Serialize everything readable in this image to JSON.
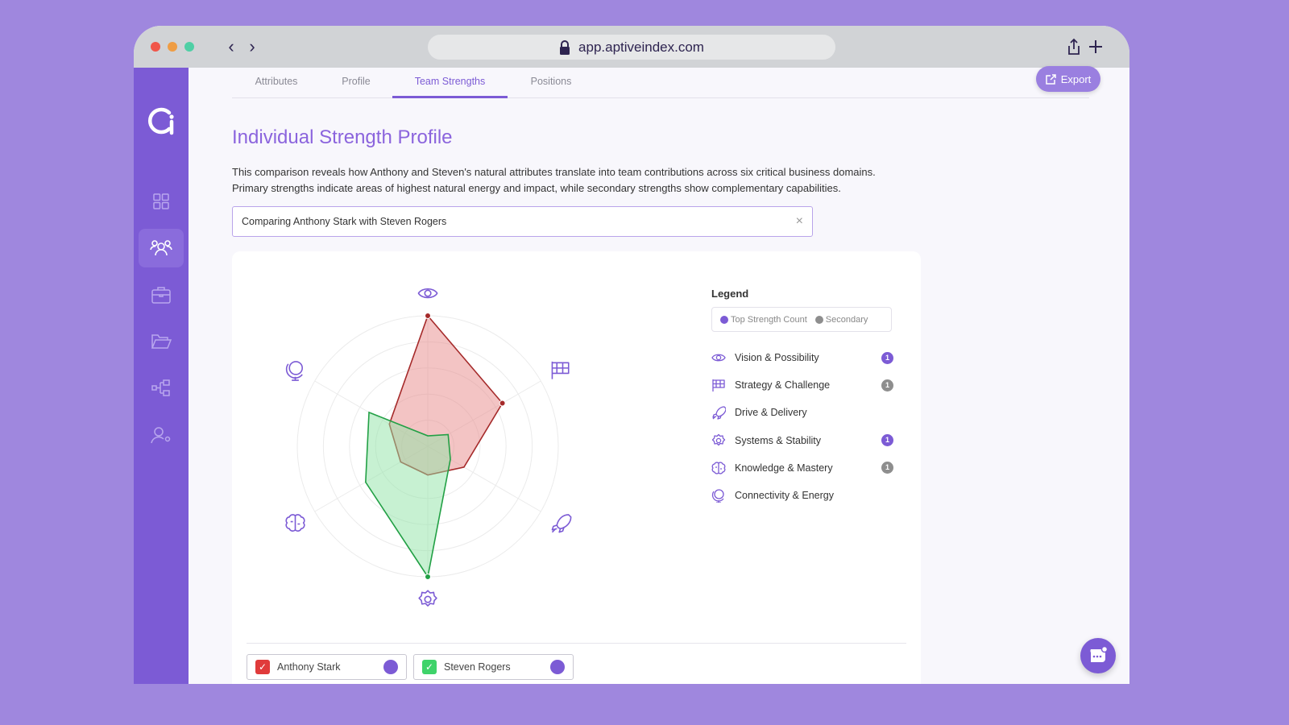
{
  "browser": {
    "url": "app.aptiveindex.com",
    "traffic_lights": [
      "#f0564a",
      "#ef9d45",
      "#4fcfa5"
    ]
  },
  "sidebar": {
    "items": [
      {
        "icon": "dashboard-grid-icon"
      },
      {
        "icon": "team-icon",
        "active": true
      },
      {
        "icon": "briefcase-icon"
      },
      {
        "icon": "folder-icon"
      },
      {
        "icon": "org-chart-icon"
      },
      {
        "icon": "user-settings-icon"
      }
    ]
  },
  "tabs": [
    {
      "label": "Attributes"
    },
    {
      "label": "Profile"
    },
    {
      "label": "Team Strengths",
      "active": true
    },
    {
      "label": "Positions"
    }
  ],
  "export_label": "Export",
  "page": {
    "title": "Individual Strength Profile",
    "description_1": "This comparison reveals how Anthony and Steven's natural attributes translate into team contributions across six critical business domains.",
    "description_2": "Primary strengths indicate areas of highest natural energy and impact, while secondary strengths show complementary capabilities.",
    "search_value": "Comparing Anthony Stark with Steven Rogers"
  },
  "legend": {
    "title": "Legend",
    "pills": [
      {
        "label": "Top Strength Count",
        "color": "#7c5bd5"
      },
      {
        "label": "Secondary",
        "color": "#8e8e8e"
      }
    ],
    "items": [
      {
        "label": "Vision & Possibility",
        "icon": "eye-icon",
        "badge": "1",
        "badge_type": "top"
      },
      {
        "label": "Strategy & Challenge",
        "icon": "flag-icon",
        "badge": "1",
        "badge_type": "secondary"
      },
      {
        "label": "Drive & Delivery",
        "icon": "rocket-icon"
      },
      {
        "label": "Systems & Stability",
        "icon": "gear-icon",
        "badge": "1",
        "badge_type": "top"
      },
      {
        "label": "Knowledge & Mastery",
        "icon": "brain-icon",
        "badge": "1",
        "badge_type": "secondary"
      },
      {
        "label": "Connectivity & Energy",
        "icon": "globe-icon"
      }
    ]
  },
  "chart_data": {
    "type": "radar",
    "categories": [
      "Vision & Possibility",
      "Strategy & Challenge",
      "Drive & Delivery",
      "Systems & Stability",
      "Knowledge & Mastery",
      "Connectivity & Energy"
    ],
    "rlim": [
      0,
      5
    ],
    "grid": true,
    "series": [
      {
        "name": "Anthony Stark",
        "color": "#a52a2a",
        "fill": "#e88a8a",
        "values": [
          5,
          3.3,
          1.6,
          1.1,
          1.2,
          1.7
        ]
      },
      {
        "name": "Steven Rogers",
        "color": "#22a045",
        "fill": "#8fe3a5",
        "values": [
          0.4,
          0.9,
          1.0,
          5,
          2.75,
          2.6
        ]
      }
    ]
  },
  "people": [
    {
      "name": "Anthony Stark",
      "color": "#e03b3b",
      "checked": true
    },
    {
      "name": "Steven Rogers",
      "color": "#3fd36a",
      "checked": true
    }
  ]
}
